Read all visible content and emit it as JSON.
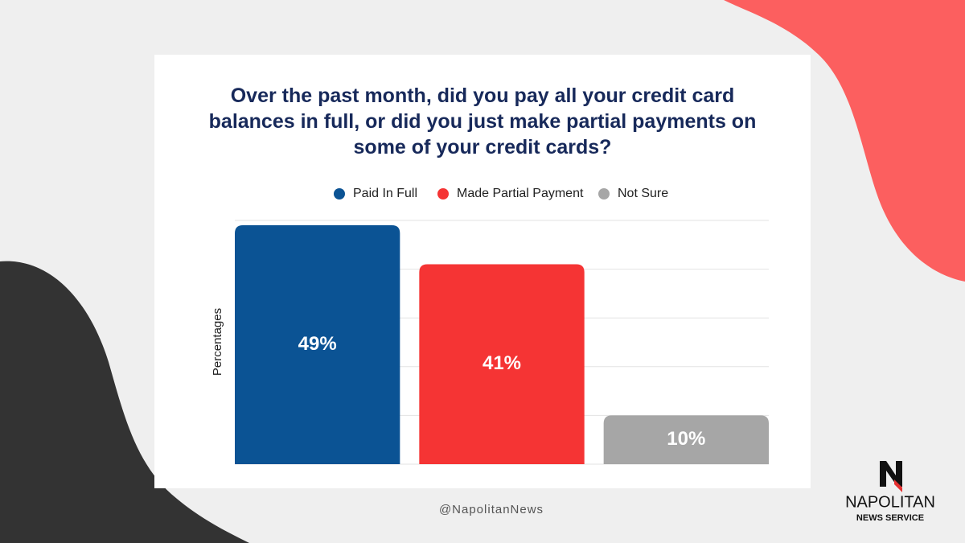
{
  "chart_data": {
    "type": "bar",
    "title": "Over the past month, did you pay all your credit card balances in full, or did you just make partial payments on some of your credit cards?",
    "y_label": "Percentages",
    "series": [
      {
        "name": "Paid In Full",
        "color": "#0b5394",
        "values": [
          49
        ],
        "value_labels": [
          "49%"
        ]
      },
      {
        "name": "Made Partial Payment",
        "color": "#f53434",
        "values": [
          41
        ],
        "value_labels": [
          "41%"
        ]
      },
      {
        "name": "Not Sure",
        "color": "#a6a6a6",
        "values": [
          10
        ],
        "value_labels": [
          "10%"
        ]
      }
    ],
    "ylim": [
      0,
      50
    ],
    "grid_lines": [
      0,
      10,
      20,
      30,
      40,
      50
    ],
    "grid": true,
    "legend": "top"
  },
  "footer": {
    "handle": "@NapolitanNews",
    "brand": "NAPOLITAN",
    "brand_sub": "NEWS SERVICE"
  }
}
